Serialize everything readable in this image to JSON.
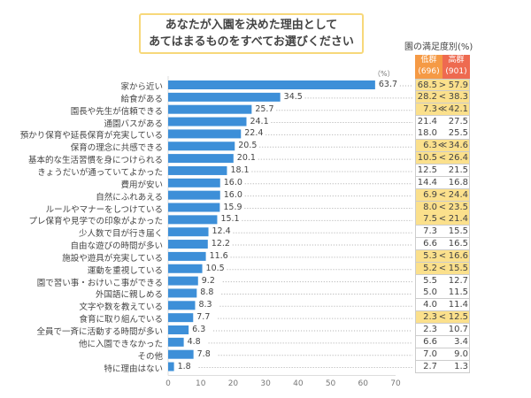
{
  "colors": {
    "bar": "#3d8fd8",
    "highlight": "#fbe08c",
    "low_header": "#f59a45",
    "high_header": "#ee6a50"
  },
  "chart_data": {
    "type": "bar",
    "orientation": "horizontal",
    "title": "あなたが入園を決めた理由として\nあてはまるものをすべてお選びください",
    "title_line1": "あなたが入園を決めた理由として",
    "title_line2": "あてはまるものをすべてお選びください",
    "unit": "（%）",
    "xlim": [
      0,
      70
    ],
    "xticks": [
      "0",
      "10",
      "20",
      "30",
      "40",
      "50",
      "60",
      "70"
    ],
    "categories": [
      "家から近い",
      "給食がある",
      "園長や先生が信頼できる",
      "通園バスがある",
      "預かり保育や延長保育が充実している",
      "保育の理念に共感できる",
      "基本的な生活習慣を身につけられる",
      "きょうだいが通っていてよかった",
      "費用が安い",
      "自然にふれあえる",
      "ルールやマナーをしつけている",
      "プレ保育や見学での印象がよかった",
      "少人数で目が行き届く",
      "自由な遊びの時間が多い",
      "施設や遊具が充実している",
      "運動を重視している",
      "園で習い事・おけいこ事ができる",
      "外国語に親しめる",
      "文字や数を教えている",
      "食育に取り組んでいる",
      "全員で一斉に活動する時間が多い",
      "他に入園できなかった",
      "その他",
      "特に理由はない"
    ],
    "values": [
      63.7,
      34.5,
      25.7,
      24.1,
      22.4,
      20.5,
      20.1,
      18.1,
      16.0,
      16.0,
      15.9,
      15.1,
      12.4,
      12.2,
      11.6,
      10.5,
      9.2,
      8.8,
      8.3,
      7.7,
      6.3,
      4.8,
      7.8,
      1.8
    ],
    "value_labels": [
      "63.7",
      "34.5",
      "25.7",
      "24.1",
      "22.4",
      "20.5",
      "20.1",
      "18.1",
      "16.0",
      "16.0",
      "15.9",
      "15.1",
      "12.4",
      "12.2",
      "11.6",
      "10.5",
      "9.2",
      "8.8",
      "8.3",
      "7.7",
      "6.3",
      "4.8",
      "7.8",
      "1.8"
    ]
  },
  "table": {
    "title": "園の満足度別(%)",
    "low_header": "低群",
    "low_n": "(696)",
    "high_header": "高群",
    "high_n": "(901)",
    "rows": [
      {
        "low": "68.5",
        "cmp": ">",
        "high": "57.9",
        "hl": true
      },
      {
        "low": "28.2",
        "cmp": "<",
        "high": "38.3",
        "hl": true
      },
      {
        "low": "7.3",
        "cmp": "≪",
        "high": "42.1",
        "hl": true
      },
      {
        "low": "21.4",
        "cmp": "",
        "high": "27.5",
        "hl": false
      },
      {
        "low": "18.0",
        "cmp": "",
        "high": "25.5",
        "hl": false
      },
      {
        "low": "6.3",
        "cmp": "≪",
        "high": "34.6",
        "hl": true
      },
      {
        "low": "10.5",
        "cmp": "<",
        "high": "26.4",
        "hl": true
      },
      {
        "low": "12.5",
        "cmp": "",
        "high": "21.5",
        "hl": false
      },
      {
        "low": "14.4",
        "cmp": "",
        "high": "16.8",
        "hl": false
      },
      {
        "low": "6.9",
        "cmp": "<",
        "high": "24.4",
        "hl": true
      },
      {
        "low": "8.0",
        "cmp": "<",
        "high": "23.5",
        "hl": true
      },
      {
        "low": "7.5",
        "cmp": "<",
        "high": "21.4",
        "hl": true
      },
      {
        "low": "7.3",
        "cmp": "",
        "high": "15.5",
        "hl": false
      },
      {
        "low": "6.6",
        "cmp": "",
        "high": "16.5",
        "hl": false
      },
      {
        "low": "5.3",
        "cmp": "<",
        "high": "16.6",
        "hl": true
      },
      {
        "low": "5.2",
        "cmp": "<",
        "high": "15.5",
        "hl": true
      },
      {
        "low": "5.5",
        "cmp": "",
        "high": "12.7",
        "hl": false
      },
      {
        "low": "5.0",
        "cmp": "",
        "high": "11.5",
        "hl": false
      },
      {
        "low": "4.0",
        "cmp": "",
        "high": "11.4",
        "hl": false
      },
      {
        "low": "2.3",
        "cmp": "<",
        "high": "12.5",
        "hl": true
      },
      {
        "low": "2.3",
        "cmp": "",
        "high": "10.7",
        "hl": false
      },
      {
        "low": "6.6",
        "cmp": "",
        "high": "3.4",
        "hl": false
      },
      {
        "low": "7.0",
        "cmp": "",
        "high": "9.0",
        "hl": false
      },
      {
        "low": "2.7",
        "cmp": "",
        "high": "1.3",
        "hl": false
      }
    ]
  }
}
